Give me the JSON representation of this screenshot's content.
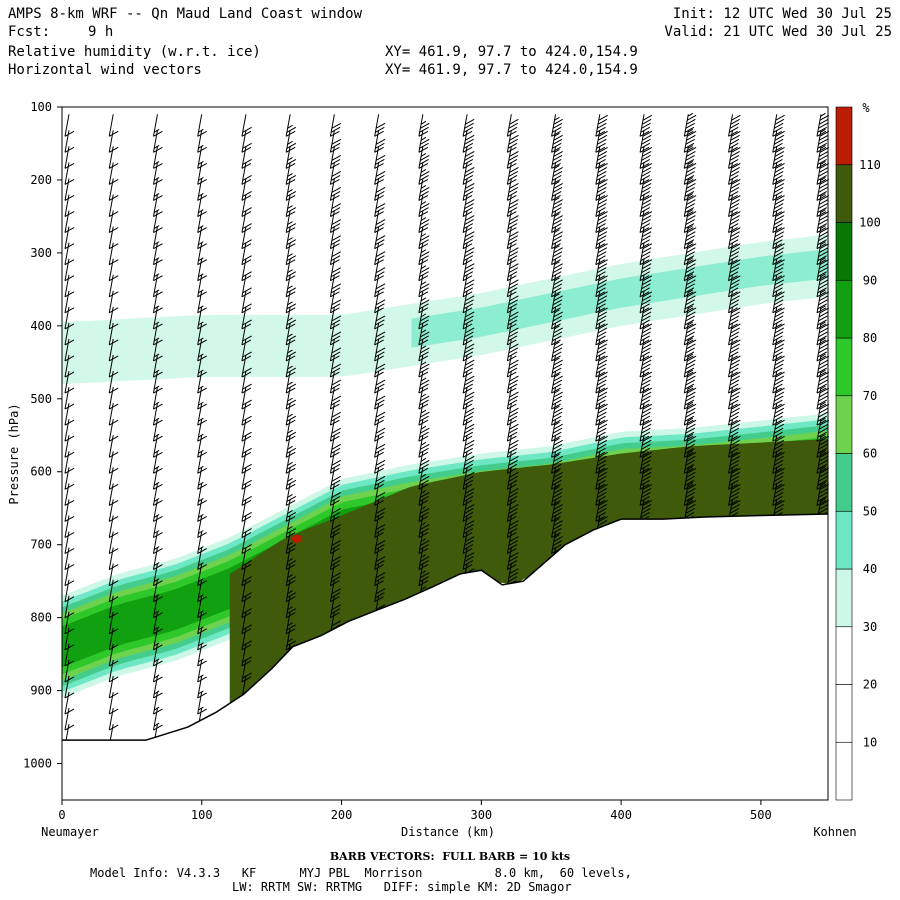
{
  "header": {
    "title": "AMPS 8-km WRF -- Qn Maud Land Coast window",
    "fcst_label": "Fcst:",
    "fcst_value": "9 h",
    "field1": "Relative humidity (w.r.t. ice)",
    "field2": "Horizontal wind vectors",
    "init": "Init: 12 UTC Wed 30 Jul 25",
    "valid": "Valid: 21 UTC Wed 30 Jul 25",
    "xy1": "XY= 461.9, 97.7 to 424.0,154.9",
    "xy2": "XY= 461.9, 97.7 to 424.0,154.9"
  },
  "footer": {
    "barb_note": "BARB VECTORS:  FULL BARB = 10 kts",
    "model_info": "Model Info: V4.3.3   KF      MYJ PBL  Morrison          8.0 km,  60 levels,",
    "physics": "LW: RRTM SW: RRTMG   DIFF: simple KM: 2D Smagor"
  },
  "chart_data": {
    "type": "heatmap",
    "title": "Relative humidity (w.r.t. ice)",
    "xlabel": "Distance (km)",
    "ylabel": "Pressure (hPa)",
    "x_left_label": "Neumayer",
    "x_right_label": "Kohnen",
    "xlim": [
      0,
      548
    ],
    "ylim": [
      1050,
      100
    ],
    "x_ticks": [
      0,
      100,
      200,
      300,
      400,
      500
    ],
    "y_ticks": [
      100,
      200,
      300,
      400,
      500,
      600,
      700,
      800,
      900,
      1000
    ],
    "colorbar": {
      "unit": "%",
      "levels": [
        10,
        20,
        30,
        40,
        50,
        60,
        70,
        80,
        90,
        100,
        110
      ],
      "colors": [
        "#ffffff",
        "#ffffff",
        "#ffffff",
        "#cdf7e7",
        "#6ee8c4",
        "#44cc8c",
        "#6ed24e",
        "#2fc82a",
        "#10a010",
        "#067806",
        "#3e5a0a",
        "#bb1c04"
      ]
    },
    "terrain_surface": {
      "x": [
        0,
        20,
        60,
        90,
        110,
        130,
        150,
        165,
        185,
        205,
        225,
        245,
        265,
        285,
        300,
        315,
        330,
        345,
        360,
        380,
        400,
        430,
        460,
        500,
        548
      ],
      "p": [
        968,
        968,
        968,
        950,
        930,
        905,
        870,
        840,
        825,
        805,
        790,
        775,
        758,
        740,
        735,
        755,
        750,
        725,
        700,
        680,
        665,
        665,
        662,
        660,
        658
      ]
    },
    "moist_layer": {
      "description_x": [
        0,
        40,
        80,
        120,
        160,
        200,
        250,
        300,
        350,
        400,
        450,
        500,
        548
      ],
      "top_p": [
        770,
        740,
        720,
        690,
        650,
        610,
        590,
        575,
        565,
        545,
        540,
        530,
        520
      ],
      "core_top_p": [
        790,
        770,
        760,
        740,
        690,
        660,
        620,
        600,
        590,
        575,
        565,
        560,
        555
      ],
      "peak_rh": 110
    },
    "upper_moist_band": {
      "x": [
        0,
        100,
        200,
        300,
        400,
        500,
        548
      ],
      "p_center": [
        440,
        430,
        430,
        400,
        360,
        330,
        320
      ],
      "rh": 40
    },
    "wind_barbs": {
      "note": "FULL BARB = 10 kts",
      "speed_kts_by_column": [
        10,
        12,
        15,
        15,
        20,
        25,
        30,
        30,
        35,
        40,
        40,
        45,
        50,
        50,
        55,
        60,
        60,
        65
      ]
    }
  }
}
